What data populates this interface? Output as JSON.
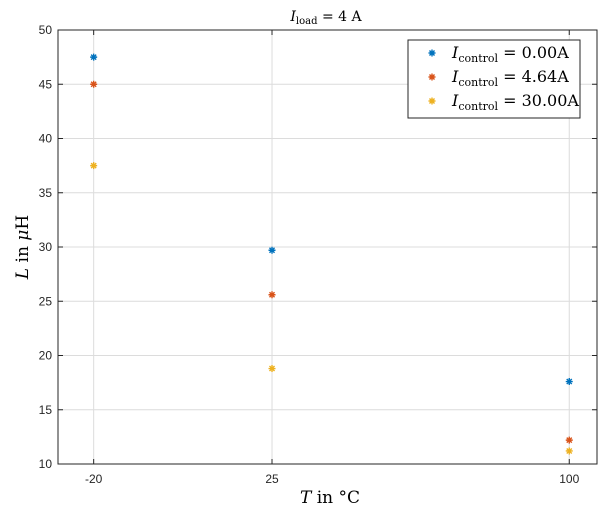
{
  "chart_data": {
    "type": "scatter",
    "title": {
      "var": "I",
      "sub": "load",
      "rest": " = 4 A"
    },
    "xlabel": {
      "var": "T",
      "rest": " in °C"
    },
    "ylabel": {
      "var": "L",
      "rest": " in ",
      "unit_var": "μ",
      "unit": "H"
    },
    "x": [
      -20,
      25,
      100
    ],
    "x_ticks": [
      "-20",
      "25",
      "100"
    ],
    "xlim": [
      -29,
      107
    ],
    "ylim": [
      10,
      50
    ],
    "y_ticks": [
      10,
      15,
      20,
      25,
      30,
      35,
      40,
      45,
      50
    ],
    "grid": true,
    "legend_position": "top-right",
    "series": [
      {
        "name": {
          "var": "I",
          "sub": "control",
          "rest": " = 0.00A"
        },
        "color": "#0072BD",
        "values": [
          47.5,
          29.7,
          17.6
        ]
      },
      {
        "name": {
          "var": "I",
          "sub": "control",
          "rest": " = 4.64A"
        },
        "color": "#D95319",
        "values": [
          45.0,
          25.6,
          12.2
        ]
      },
      {
        "name": {
          "var": "I",
          "sub": "control",
          "rest": " = 30.00A"
        },
        "color": "#EDB120",
        "values": [
          37.5,
          18.8,
          11.2
        ]
      }
    ]
  }
}
